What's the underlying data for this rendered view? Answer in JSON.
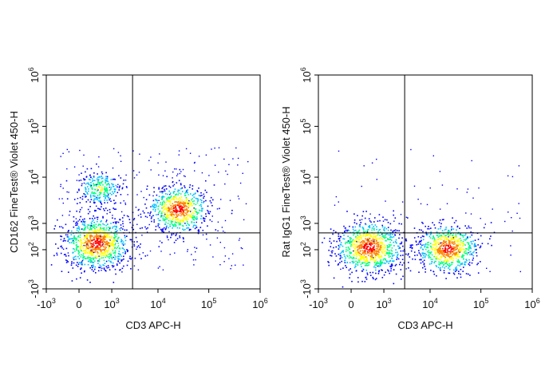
{
  "chart_data": [
    {
      "type": "scatter",
      "subtype": "flow-cytometry-density-dot-plot",
      "title": "",
      "xlabel": "CD3 APC-H",
      "ylabel": "CD162 FineTest® Violet 450-H",
      "x_scale": "biexponential",
      "y_scale": "biexponential",
      "xlim": [
        -1000,
        1000000
      ],
      "ylim": [
        -1000,
        1000000
      ],
      "x_ticks": [
        {
          "base": "-10",
          "exp": "3",
          "value": -1000
        },
        {
          "base": "0",
          "exp": "",
          "value": 0
        },
        {
          "base": "10",
          "exp": "3",
          "value": 1000
        },
        {
          "base": "10",
          "exp": "4",
          "value": 10000
        },
        {
          "base": "10",
          "exp": "5",
          "value": 100000
        },
        {
          "base": "10",
          "exp": "6",
          "value": 1000000
        }
      ],
      "y_ticks": [
        {
          "base": "-10",
          "exp": "3",
          "value": -1000
        },
        {
          "base": "10",
          "exp": "2",
          "value": 100
        },
        {
          "base": "10",
          "exp": "3",
          "value": 1000
        },
        {
          "base": "10",
          "exp": "4",
          "value": 10000
        },
        {
          "base": "10",
          "exp": "5",
          "value": 100000
        },
        {
          "base": "10",
          "exp": "6",
          "value": 1000000
        }
      ],
      "gate": {
        "x": 3000,
        "y": 550
      },
      "populations": [
        {
          "x": 350,
          "y": 250,
          "relative_size": 1.0,
          "peak_density": "high"
        },
        {
          "x": 25000,
          "y": 2200,
          "relative_size": 0.75,
          "peak_density": "high"
        },
        {
          "x": 450,
          "y": 6000,
          "relative_size": 0.3,
          "peak_density": "medium"
        }
      ]
    },
    {
      "type": "scatter",
      "subtype": "flow-cytometry-density-dot-plot",
      "title": "",
      "xlabel": "CD3 APC-H",
      "ylabel": "Rat IgG1 FineTest® Violet 450-H",
      "x_scale": "biexponential",
      "y_scale": "biexponential",
      "xlim": [
        -1000,
        1000000
      ],
      "ylim": [
        -1000,
        1000000
      ],
      "x_ticks": [
        {
          "base": "-10",
          "exp": "3",
          "value": -1000
        },
        {
          "base": "0",
          "exp": "",
          "value": 0
        },
        {
          "base": "10",
          "exp": "3",
          "value": 1000
        },
        {
          "base": "10",
          "exp": "4",
          "value": 10000
        },
        {
          "base": "10",
          "exp": "5",
          "value": 100000
        },
        {
          "base": "10",
          "exp": "6",
          "value": 1000000
        }
      ],
      "y_ticks": [
        {
          "base": "-10",
          "exp": "3",
          "value": -1000
        },
        {
          "base": "10",
          "exp": "2",
          "value": 100
        },
        {
          "base": "10",
          "exp": "3",
          "value": 1000
        },
        {
          "base": "10",
          "exp": "4",
          "value": 10000
        },
        {
          "base": "10",
          "exp": "5",
          "value": 100000
        },
        {
          "base": "10",
          "exp": "6",
          "value": 1000000
        }
      ],
      "gate": {
        "x": 3000,
        "y": 550
      },
      "populations": [
        {
          "x": 350,
          "y": 150,
          "relative_size": 1.0,
          "peak_density": "high"
        },
        {
          "x": 22000,
          "y": 130,
          "relative_size": 0.8,
          "peak_density": "high"
        }
      ]
    }
  ],
  "colors": {
    "density_scale": [
      "#0000ff",
      "#00bfff",
      "#00ff80",
      "#ffff00",
      "#ff8000",
      "#ff0000"
    ],
    "axis": "#000000",
    "gate_line": "#000000"
  }
}
